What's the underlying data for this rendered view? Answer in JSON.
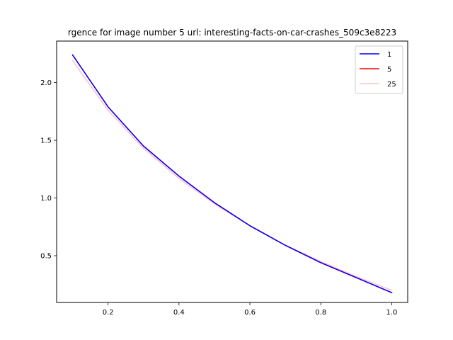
{
  "chart_data": {
    "type": "line",
    "title": "rgence for image number 5 url: interesting-facts-on-car-crashes_509c3e8223",
    "xlabel": "",
    "ylabel": "",
    "xlim": [
      0.055,
      1.045
    ],
    "ylim": [
      0.095,
      2.36
    ],
    "xticks": [
      0.2,
      0.4,
      0.6,
      0.8,
      1.0
    ],
    "xtick_labels": [
      "0.2",
      "0.4",
      "0.6",
      "0.8",
      "1.0"
    ],
    "yticks": [
      0.5,
      1.0,
      1.5,
      2.0
    ],
    "ytick_labels": [
      "0.5",
      "1.0",
      "1.5",
      "2.0"
    ],
    "grid": false,
    "legend_position": "top-right",
    "x": [
      0.1,
      0.2,
      0.3,
      0.4,
      0.5,
      0.6,
      0.7,
      0.8,
      0.9,
      1.0
    ],
    "series": [
      {
        "name": "1",
        "color": "#0000ff",
        "values": [
          2.24,
          1.79,
          1.45,
          1.19,
          0.96,
          0.76,
          0.59,
          0.44,
          0.31,
          0.18
        ]
      },
      {
        "name": "5",
        "color": "#ff0000",
        "values": [
          2.24,
          1.79,
          1.45,
          1.19,
          0.96,
          0.76,
          0.59,
          0.44,
          0.31,
          0.18
        ]
      },
      {
        "name": "25",
        "color": "#ffc0cb",
        "values": [
          2.19,
          1.76,
          1.43,
          1.17,
          0.95,
          0.76,
          0.59,
          0.45,
          0.32,
          0.2
        ]
      }
    ]
  }
}
